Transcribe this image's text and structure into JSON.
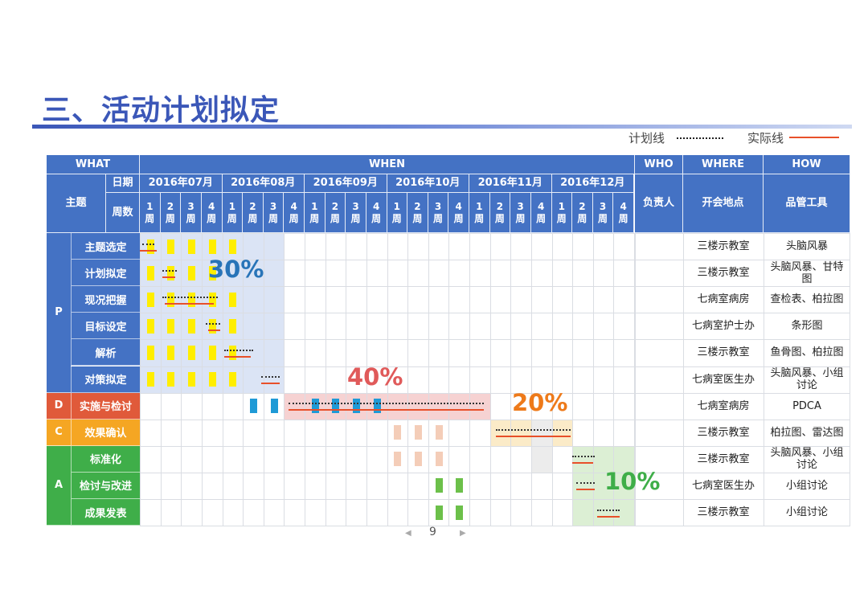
{
  "title": "三、活动计划拟定",
  "legend": {
    "plan": "计划线",
    "actual": "实际线"
  },
  "header": {
    "what": "WHAT",
    "when": "WHEN",
    "who": "WHO",
    "where": "WHERE",
    "how": "HOW",
    "topic": "主题",
    "date": "日期",
    "weeks": "周数",
    "owner": "负责人",
    "venue": "开会地点",
    "tool": "品管工具",
    "months": [
      "2016年07月",
      "2016年08月",
      "2016年09月",
      "2016年10月",
      "2016年11月",
      "2016年12月"
    ],
    "week_labels": [
      "1\n周",
      "2\n周",
      "3\n周",
      "4\n周"
    ]
  },
  "phases": [
    {
      "code": "P",
      "color": "#4472c4",
      "tasks": [
        0,
        1,
        2,
        3,
        4,
        5
      ]
    },
    {
      "code": "D",
      "color": "#e05a3a",
      "tasks": [
        6
      ]
    },
    {
      "code": "C",
      "color": "#f5a623",
      "tasks": [
        7
      ]
    },
    {
      "code": "A",
      "color": "#3fae49",
      "tasks": [
        8,
        9,
        10
      ]
    }
  ],
  "tasks": [
    {
      "name": "主题选定",
      "where": "三楼示教室",
      "how": "头脑风暴"
    },
    {
      "name": "计划拟定",
      "where": "三楼示教室",
      "how": "头脑风暴、甘特图"
    },
    {
      "name": "现况把握",
      "where": "七病室病房",
      "how": "查检表、柏拉图"
    },
    {
      "name": "目标设定",
      "where": "七病室护士办",
      "how": "条形图"
    },
    {
      "name": "解析",
      "where": "三楼示教室",
      "how": "鱼骨图、柏拉图"
    },
    {
      "name": "对策拟定",
      "where": "七病室医生办",
      "how": "头脑风暴、小组讨论"
    },
    {
      "name": "实施与检讨",
      "where": "七病室病房",
      "how": "PDCA"
    },
    {
      "name": "效果确认",
      "where": "三楼示教室",
      "how": "柏拉图、雷达图"
    },
    {
      "name": "标准化",
      "where": "三楼示教室",
      "how": "头脑风暴、小组讨论"
    },
    {
      "name": "检讨与改进",
      "where": "七病室医生办",
      "how": "小组讨论"
    },
    {
      "name": "成果发表",
      "where": "三楼示教室",
      "how": "小组讨论"
    }
  ],
  "shading": [
    {
      "rows": [
        0,
        5
      ],
      "weeks": [
        0,
        6
      ],
      "color": "#dbe4f5"
    },
    {
      "rows": [
        6,
        6
      ],
      "weeks": [
        7,
        16
      ],
      "color": "#f6d2d2"
    },
    {
      "rows": [
        7,
        7
      ],
      "weeks": [
        17,
        20
      ],
      "color": "#fbebc8"
    },
    {
      "rows": [
        7,
        8
      ],
      "weeks": [
        19,
        19
      ],
      "color": "#ececec"
    },
    {
      "rows": [
        8,
        10
      ],
      "weeks": [
        21,
        23
      ],
      "color": "#dcefd4"
    }
  ],
  "markers": [
    {
      "row": 0,
      "weeks": [
        0,
        1,
        2,
        3,
        4
      ],
      "color": "#ffee00"
    },
    {
      "row": 1,
      "weeks": [
        0,
        1,
        2,
        3
      ],
      "color": "#ffee00"
    },
    {
      "row": 2,
      "weeks": [
        0,
        1,
        2,
        3,
        4
      ],
      "color": "#ffee00"
    },
    {
      "row": 3,
      "weeks": [
        0,
        1,
        2,
        3,
        4
      ],
      "color": "#ffee00"
    },
    {
      "row": 4,
      "weeks": [
        0,
        1,
        2,
        3,
        4
      ],
      "color": "#ffee00"
    },
    {
      "row": 5,
      "weeks": [
        0,
        1,
        2,
        3,
        4
      ],
      "color": "#ffee00"
    },
    {
      "row": 6,
      "weeks": [
        5,
        6,
        8,
        9,
        10,
        11
      ],
      "color": "#1f9ad6"
    },
    {
      "row": 7,
      "weeks": [
        12,
        13,
        14
      ],
      "color": "#f4cdb8"
    },
    {
      "row": 8,
      "weeks": [
        12,
        13,
        14
      ],
      "color": "#f4cdb8"
    },
    {
      "row": 9,
      "weeks": [
        14,
        15
      ],
      "color": "#6cc04a"
    },
    {
      "row": 10,
      "weeks": [
        14,
        15
      ],
      "color": "#6cc04a"
    }
  ],
  "plan_lines": [
    {
      "row": 0,
      "from": 0.1,
      "to": 0.7
    },
    {
      "row": 1,
      "from": 1.1,
      "to": 1.8
    },
    {
      "row": 2,
      "from": 1.1,
      "to": 3.8
    },
    {
      "row": 3,
      "from": 3.2,
      "to": 3.9
    },
    {
      "row": 4,
      "from": 4.1,
      "to": 5.5
    },
    {
      "row": 5,
      "from": 5.9,
      "to": 6.8
    },
    {
      "row": 6,
      "from": 7.2,
      "to": 16.7
    },
    {
      "row": 7,
      "from": 17.3,
      "to": 20.9
    },
    {
      "row": 8,
      "from": 21.0,
      "to": 22.1
    },
    {
      "row": 9,
      "from": 21.2,
      "to": 22.1
    },
    {
      "row": 10,
      "from": 22.2,
      "to": 23.3
    }
  ],
  "actual_lines": [
    {
      "row": 0,
      "from": 0.0,
      "to": 0.8
    },
    {
      "row": 1,
      "from": 1.1,
      "to": 1.7
    },
    {
      "row": 2,
      "from": 1.2,
      "to": 3.6
    },
    {
      "row": 3,
      "from": 3.3,
      "to": 3.9
    },
    {
      "row": 4,
      "from": 4.1,
      "to": 5.4
    },
    {
      "row": 5,
      "from": 5.9,
      "to": 6.8
    },
    {
      "row": 6,
      "from": 7.2,
      "to": 16.7
    },
    {
      "row": 7,
      "from": 17.3,
      "to": 20.9
    },
    {
      "row": 8,
      "from": 21.0,
      "to": 22.0
    },
    {
      "row": 9,
      "from": 21.2,
      "to": 22.1
    },
    {
      "row": 10,
      "from": 22.2,
      "to": 23.3
    }
  ],
  "percent_labels": [
    {
      "text": "30%",
      "color": "#2874b8"
    },
    {
      "text": "40%",
      "color": "#e05a5a"
    },
    {
      "text": "20%",
      "color": "#ee7a1a"
    },
    {
      "text": "10%",
      "color": "#3fae49"
    }
  ],
  "page_number": "9"
}
